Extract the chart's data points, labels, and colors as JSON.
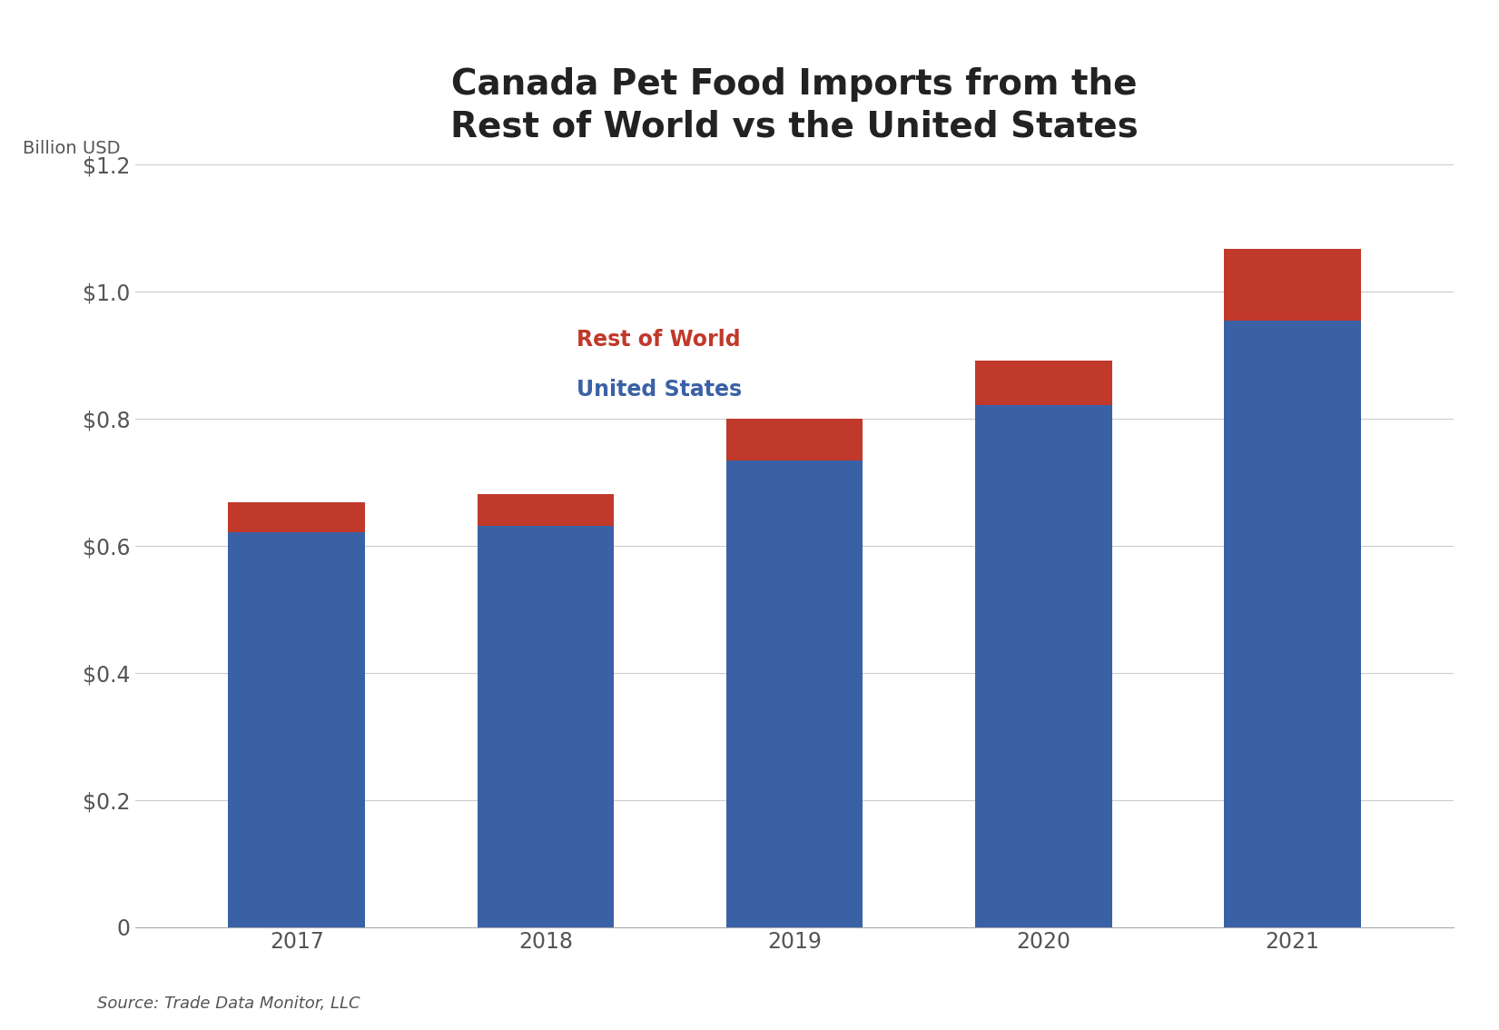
{
  "years": [
    "2017",
    "2018",
    "2019",
    "2020",
    "2021"
  ],
  "us_values": [
    0.621,
    0.632,
    0.735,
    0.822,
    0.955
  ],
  "row_values": [
    0.047,
    0.05,
    0.065,
    0.07,
    0.112
  ],
  "us_color": "#3A61A5",
  "row_color": "#C0392B",
  "title_line1": "Canada Pet Food Imports from the",
  "title_line2": "Rest of World vs the United States",
  "ylabel": "Billion USD",
  "ylim": [
    0,
    1.2
  ],
  "yticks": [
    0,
    0.2,
    0.4,
    0.6,
    0.8,
    1.0,
    1.2
  ],
  "legend_row_label": "Rest of World",
  "legend_us_label": "United States",
  "source_text": "Source: Trade Data Monitor, LLC",
  "background_color": "#FFFFFF",
  "title_fontsize": 28,
  "axis_label_fontsize": 14,
  "tick_fontsize": 17,
  "legend_fontsize": 17,
  "source_fontsize": 13,
  "bar_width": 0.55
}
